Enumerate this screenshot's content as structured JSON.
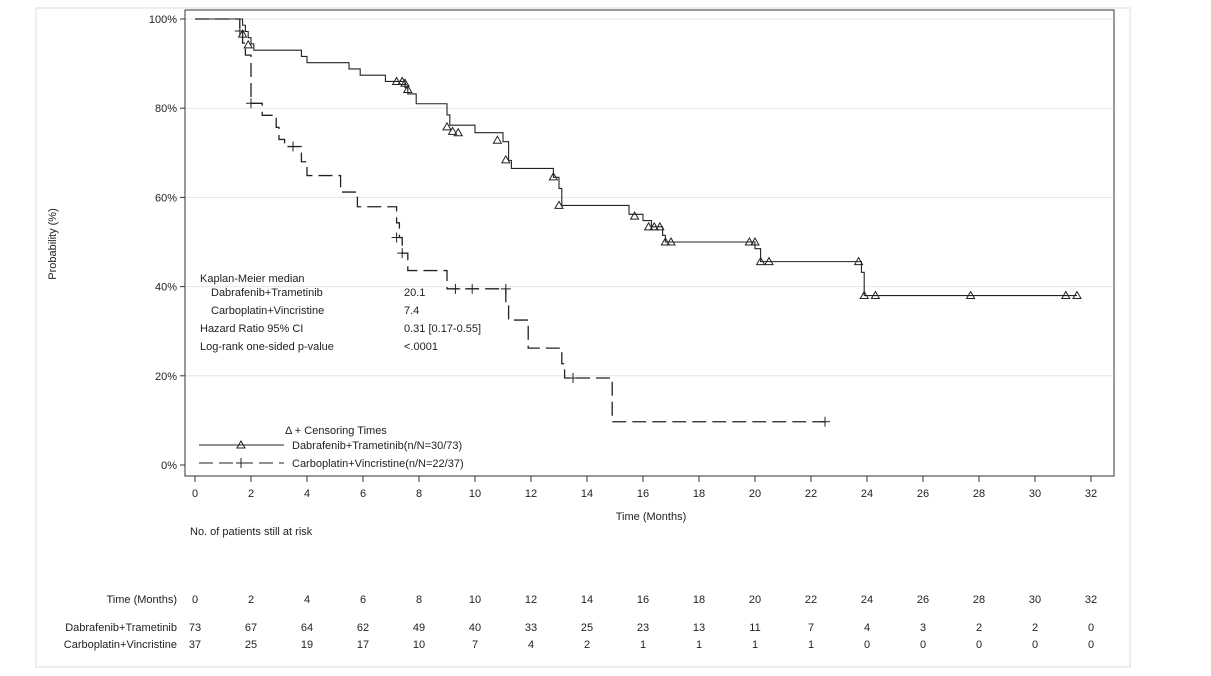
{
  "chart_data": {
    "type": "line",
    "subtype": "kaplan-meier",
    "xlabel": "Time (Months)",
    "ylabel": "Probability (%)",
    "xlim": [
      0,
      32
    ],
    "ylim": [
      0,
      100
    ],
    "x_ticks": [
      "0",
      "2",
      "4",
      "6",
      "8",
      "10",
      "12",
      "14",
      "16",
      "18",
      "20",
      "22",
      "24",
      "26",
      "28",
      "30",
      "32"
    ],
    "y_ticks": [
      {
        "value": 0,
        "label": "0%"
      },
      {
        "value": 20,
        "label": "20%"
      },
      {
        "value": 40,
        "label": "40%"
      },
      {
        "value": 60,
        "label": "60%"
      },
      {
        "value": 80,
        "label": "80%"
      },
      {
        "value": 100,
        "label": "100%"
      }
    ],
    "grid": "horizontal",
    "stats": {
      "title": "Kaplan-Meier median",
      "rows": [
        {
          "label": "Dabrafenib+Trametinib",
          "value": "20.1"
        },
        {
          "label": "Carboplatin+Vincristine",
          "value": "7.4"
        },
        {
          "label": "Hazard Ratio 95% CI",
          "value": "0.31 [0.17-0.55]"
        },
        {
          "label": "Log-rank one-sided p-value",
          "value": "<.0001"
        }
      ]
    },
    "legend": {
      "title": "Δ + Censoring Times",
      "position": "bottom-left",
      "entries": [
        {
          "label": "Dabrafenib+Trametinib(n/N=30/73)",
          "style": "solid",
          "marker": "triangle"
        },
        {
          "label": "Carboplatin+Vincristine(n/N=22/37)",
          "style": "dashed",
          "marker": "plus"
        }
      ]
    },
    "series": [
      {
        "name": "Dabrafenib+Trametinib",
        "style": "solid",
        "marker": "triangle",
        "steps": [
          [
            0,
            100
          ],
          [
            1.7,
            98.6
          ],
          [
            1.8,
            97.2
          ],
          [
            1.9,
            95.8
          ],
          [
            2.0,
            94.4
          ],
          [
            2.1,
            93.0
          ],
          [
            3.8,
            91.6
          ],
          [
            4.0,
            90.2
          ],
          [
            5.5,
            88.8
          ],
          [
            5.9,
            87.4
          ],
          [
            6.8,
            86.0
          ],
          [
            7.5,
            84.6
          ],
          [
            7.6,
            83.2
          ],
          [
            7.9,
            81.0
          ],
          [
            9.0,
            78.5
          ],
          [
            9.1,
            76.2
          ],
          [
            10.0,
            74.5
          ],
          [
            11.0,
            72.5
          ],
          [
            11.2,
            68.3
          ],
          [
            11.3,
            66.5
          ],
          [
            12.8,
            64.5
          ],
          [
            13.0,
            62.0
          ],
          [
            13.1,
            58.2
          ],
          [
            15.5,
            56.2
          ],
          [
            16.0,
            54.8
          ],
          [
            16.3,
            53.4
          ],
          [
            16.7,
            51.5
          ],
          [
            16.8,
            50.0
          ],
          [
            20.0,
            48.5
          ],
          [
            20.2,
            45.6
          ],
          [
            23.8,
            43.2
          ],
          [
            23.9,
            38.0
          ]
        ],
        "censors": [
          [
            1.7,
            96.6
          ],
          [
            1.9,
            94.2
          ],
          [
            7.2,
            86.0
          ],
          [
            7.4,
            86.0
          ],
          [
            7.5,
            85.6
          ],
          [
            7.6,
            84.2
          ],
          [
            9.0,
            75.8
          ],
          [
            9.2,
            74.8
          ],
          [
            9.4,
            74.5
          ],
          [
            10.8,
            72.8
          ],
          [
            11.1,
            68.4
          ],
          [
            12.8,
            64.6
          ],
          [
            13.0,
            58.2
          ],
          [
            15.7,
            55.8
          ],
          [
            16.2,
            53.4
          ],
          [
            16.4,
            53.4
          ],
          [
            16.6,
            53.4
          ],
          [
            16.8,
            50.0
          ],
          [
            17.0,
            50.0
          ],
          [
            19.8,
            50.0
          ],
          [
            20.0,
            50.0
          ],
          [
            20.2,
            45.6
          ],
          [
            20.5,
            45.6
          ],
          [
            23.7,
            45.6
          ],
          [
            23.9,
            38.0
          ],
          [
            24.3,
            38.0
          ],
          [
            27.7,
            38.0
          ],
          [
            31.1,
            38.0
          ],
          [
            31.5,
            38.0
          ]
        ]
      },
      {
        "name": "Carboplatin+Vincristine",
        "style": "dashed",
        "marker": "plus",
        "steps": [
          [
            0,
            100
          ],
          [
            1.6,
            97.3
          ],
          [
            1.7,
            94.6
          ],
          [
            1.8,
            91.9
          ],
          [
            2.0,
            81.1
          ],
          [
            2.4,
            78.4
          ],
          [
            2.9,
            75.7
          ],
          [
            3.0,
            73.0
          ],
          [
            3.2,
            71.4
          ],
          [
            3.8,
            68.0
          ],
          [
            4.0,
            64.9
          ],
          [
            5.2,
            61.2
          ],
          [
            5.8,
            57.9
          ],
          [
            7.2,
            54.3
          ],
          [
            7.3,
            51.0
          ],
          [
            7.4,
            47.5
          ],
          [
            7.6,
            43.6
          ],
          [
            9.0,
            39.5
          ],
          [
            11.1,
            36.0
          ],
          [
            11.2,
            32.5
          ],
          [
            11.9,
            26.2
          ],
          [
            13.1,
            22.7
          ],
          [
            13.2,
            19.5
          ],
          [
            14.9,
            9.7
          ],
          [
            22.5,
            9.7
          ]
        ],
        "censors": [
          [
            1.6,
            97.3
          ],
          [
            2.0,
            81.1
          ],
          [
            3.5,
            71.4
          ],
          [
            7.2,
            51.0
          ],
          [
            7.4,
            47.5
          ],
          [
            9.3,
            39.5
          ],
          [
            9.9,
            39.5
          ],
          [
            11.1,
            39.5
          ],
          [
            13.5,
            19.5
          ],
          [
            22.5,
            9.7
          ]
        ]
      }
    ],
    "risk_table": {
      "title": "No. of patients still at risk",
      "header_label": "Time (Months)",
      "times": [
        "0",
        "2",
        "4",
        "6",
        "8",
        "10",
        "12",
        "14",
        "16",
        "18",
        "20",
        "22",
        "24",
        "26",
        "28",
        "30",
        "32"
      ],
      "rows": [
        {
          "label": "Dabrafenib+Trametinib",
          "values": [
            "73",
            "67",
            "64",
            "62",
            "49",
            "40",
            "33",
            "25",
            "23",
            "13",
            "11",
            "7",
            "4",
            "3",
            "2",
            "2",
            "0"
          ]
        },
        {
          "label": "Carboplatin+Vincristine",
          "values": [
            "37",
            "25",
            "19",
            "17",
            "10",
            "7",
            "4",
            "2",
            "1",
            "1",
            "1",
            "1",
            "0",
            "0",
            "0",
            "0",
            "0"
          ]
        }
      ]
    }
  }
}
